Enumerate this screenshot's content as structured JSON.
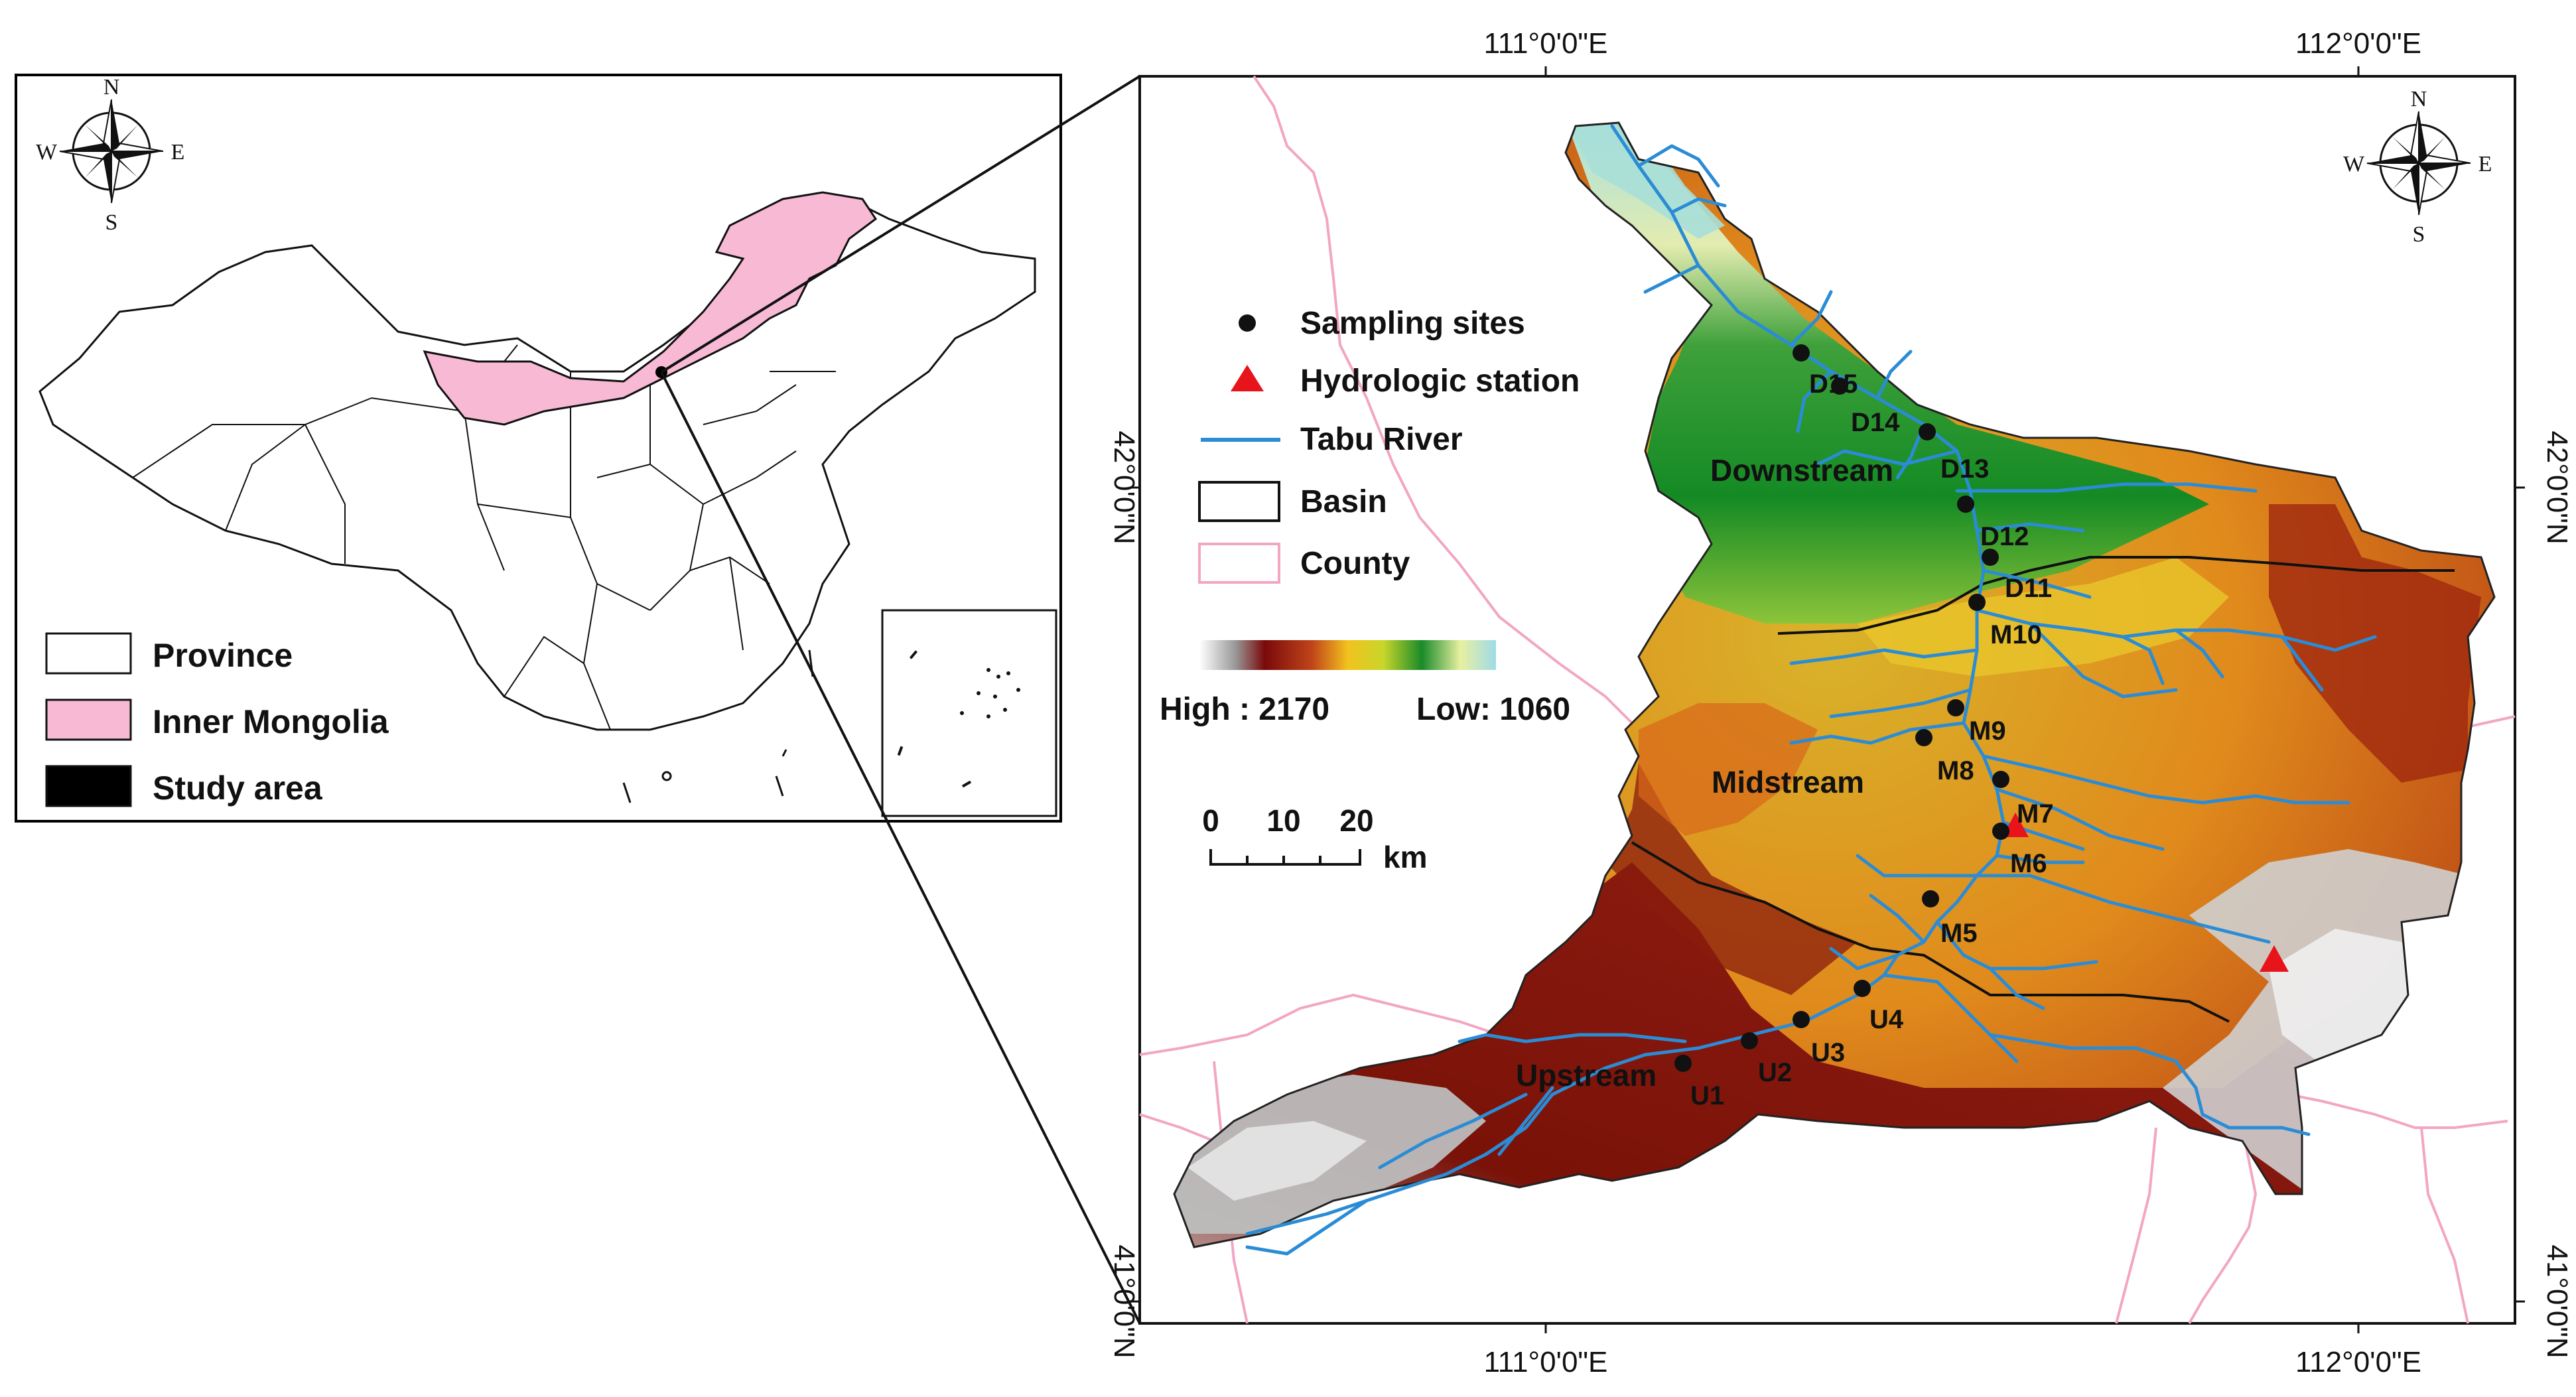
{
  "inset": {
    "legend": [
      {
        "label": "Province",
        "color": "#ffffff"
      },
      {
        "label": "Inner Mongolia",
        "color": "#f7b9d3"
      },
      {
        "label": "Study area",
        "color": "#000000"
      }
    ],
    "compass": {
      "n": "N",
      "s": "S",
      "e": "E",
      "w": "W"
    }
  },
  "map": {
    "compass": {
      "n": "N",
      "s": "S",
      "e": "E",
      "w": "W"
    },
    "coords": {
      "top_left": "111°0'0\"E",
      "top_right": "112°0'0\"E",
      "bottom_left": "111°0'0\"E",
      "bottom_right": "112°0'0\"E",
      "left_top": "42°0'0\"N",
      "left_bottom": "41°0'0\"N",
      "right_top": "42°0'0\"N",
      "right_bottom": "41°0'0\"N"
    },
    "legend": [
      {
        "label": "Sampling sites",
        "symbol": "dot"
      },
      {
        "label": "Hydrologic station",
        "symbol": "triangle"
      },
      {
        "label": "Tabu River",
        "symbol": "line"
      },
      {
        "label": "Basin",
        "symbol": "black-box"
      },
      {
        "label": "County",
        "symbol": "pink-box"
      }
    ],
    "elevation": {
      "high": "High : 2170",
      "low": "Low: 1060"
    },
    "scalebar": {
      "ticks": [
        "0",
        "10",
        "20"
      ],
      "unit": "km"
    },
    "reaches": [
      "Downstream",
      "Midstream",
      "Upstream"
    ],
    "sites": [
      "D15",
      "D14",
      "D13",
      "D12",
      "D11",
      "M10",
      "M9",
      "M8",
      "M7",
      "M6",
      "M5",
      "U4",
      "U3",
      "U2",
      "U1"
    ],
    "colors": {
      "river": "#2b8cd6",
      "county": "#f2a6c4",
      "station": "#e8141c",
      "inner_mongolia": "#f7b9d3"
    }
  }
}
